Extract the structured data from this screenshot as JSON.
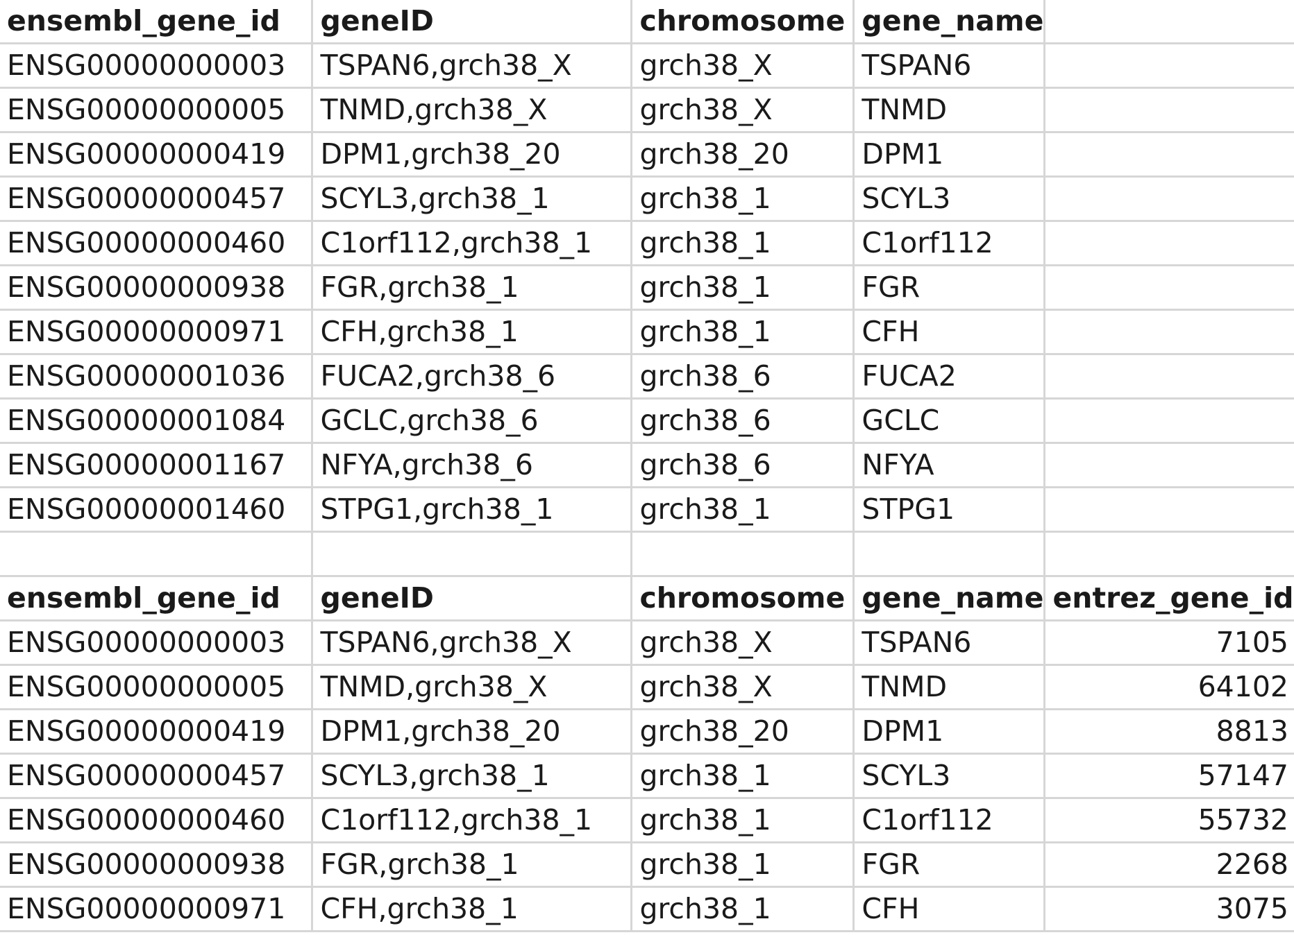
{
  "table1": {
    "headers": [
      "ensembl_gene_id",
      "geneID",
      "chromosome",
      "gene_name",
      ""
    ],
    "rows": [
      [
        "ENSG00000000003",
        "TSPAN6,grch38_X",
        "grch38_X",
        "TSPAN6",
        ""
      ],
      [
        "ENSG00000000005",
        "TNMD,grch38_X",
        "grch38_X",
        "TNMD",
        ""
      ],
      [
        "ENSG00000000419",
        "DPM1,grch38_20",
        "grch38_20",
        "DPM1",
        ""
      ],
      [
        "ENSG00000000457",
        "SCYL3,grch38_1",
        "grch38_1",
        "SCYL3",
        ""
      ],
      [
        "ENSG00000000460",
        "C1orf112,grch38_1",
        "grch38_1",
        "C1orf112",
        ""
      ],
      [
        "ENSG00000000938",
        "FGR,grch38_1",
        "grch38_1",
        "FGR",
        ""
      ],
      [
        "ENSG00000000971",
        "CFH,grch38_1",
        "grch38_1",
        "CFH",
        ""
      ],
      [
        "ENSG00000001036",
        "FUCA2,grch38_6",
        "grch38_6",
        "FUCA2",
        ""
      ],
      [
        "ENSG00000001084",
        "GCLC,grch38_6",
        "grch38_6",
        "GCLC",
        ""
      ],
      [
        "ENSG00000001167",
        "NFYA,grch38_6",
        "grch38_6",
        "NFYA",
        ""
      ],
      [
        "ENSG00000001460",
        "STPG1,grch38_1",
        "grch38_1",
        "STPG1",
        ""
      ]
    ]
  },
  "table2": {
    "headers": [
      "ensembl_gene_id",
      "geneID",
      "chromosome",
      "gene_name",
      "entrez_gene_id"
    ],
    "rows": [
      [
        "ENSG00000000003",
        "TSPAN6,grch38_X",
        "grch38_X",
        "TSPAN6",
        "7105"
      ],
      [
        "ENSG00000000005",
        "TNMD,grch38_X",
        "grch38_X",
        "TNMD",
        "64102"
      ],
      [
        "ENSG00000000419",
        "DPM1,grch38_20",
        "grch38_20",
        "DPM1",
        "8813"
      ],
      [
        "ENSG00000000457",
        "SCYL3,grch38_1",
        "grch38_1",
        "SCYL3",
        "57147"
      ],
      [
        "ENSG00000000460",
        "C1orf112,grch38_1",
        "grch38_1",
        "C1orf112",
        "55732"
      ],
      [
        "ENSG00000000938",
        "FGR,grch38_1",
        "grch38_1",
        "FGR",
        "2268"
      ],
      [
        "ENSG00000000971",
        "CFH,grch38_1",
        "grch38_1",
        "CFH",
        "3075"
      ]
    ]
  }
}
